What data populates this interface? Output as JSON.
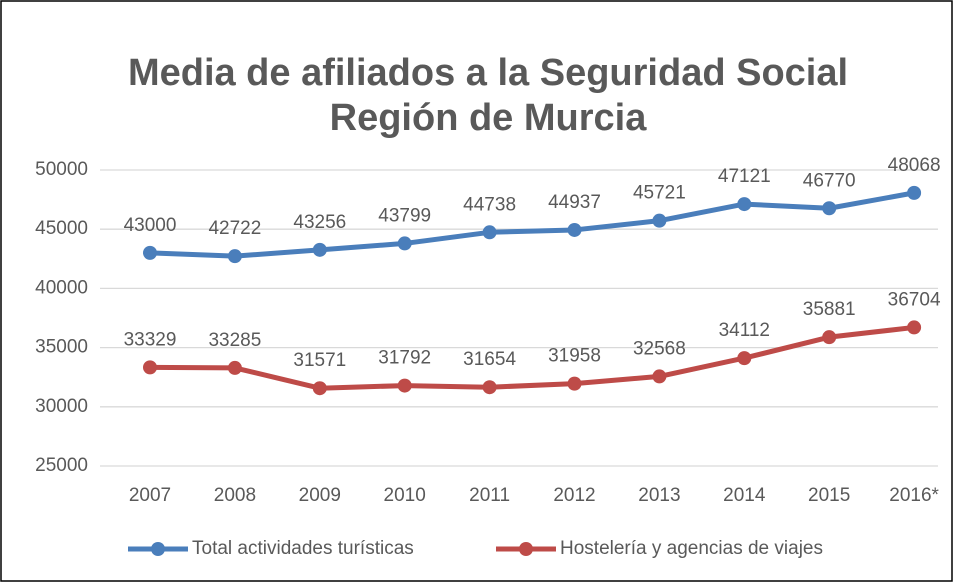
{
  "chart_data": {
    "type": "line",
    "title": [
      "Media de afiliados a la Seguridad Social",
      "Región de Murcia"
    ],
    "categories": [
      "2007",
      "2008",
      "2009",
      "2010",
      "2011",
      "2012",
      "2013",
      "2014",
      "2015",
      "2016*"
    ],
    "series": [
      {
        "name": "Total actividades turísticas",
        "color": "#4a7ebb",
        "values": [
          43000,
          42722,
          43256,
          43799,
          44738,
          44937,
          45721,
          47121,
          46770,
          48068
        ]
      },
      {
        "name": "Hostelería y agencias de viajes",
        "color": "#be4b48",
        "values": [
          33329,
          33285,
          31571,
          31792,
          31654,
          31958,
          32568,
          34112,
          35881,
          36704
        ]
      }
    ],
    "ylim": [
      25000,
      50000
    ],
    "yticks": [
      25000,
      30000,
      35000,
      40000,
      45000,
      50000
    ],
    "grid": true,
    "legend": "bottom"
  }
}
